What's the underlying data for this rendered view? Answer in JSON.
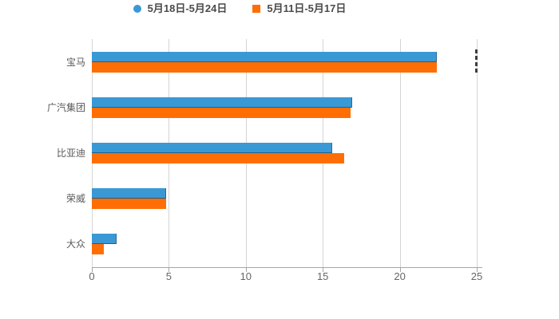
{
  "legend": {
    "items": [
      {
        "label": "5月18日-5月24日",
        "shape": "circle",
        "color": "#3A99D5"
      },
      {
        "label": "5月11日-5月17日",
        "shape": "square",
        "color": "#FF6E05"
      }
    ]
  },
  "chart_data": {
    "type": "bar",
    "orientation": "horizontal",
    "title": "",
    "xlabel": "",
    "ylabel": "",
    "categories": [
      "宝马",
      "广汽集团",
      "比亚迪",
      "荣威",
      "大众"
    ],
    "series": [
      {
        "name": "5月18日-5月24日",
        "color": "#3A99D5",
        "values": [
          22.4,
          16.9,
          15.6,
          4.8,
          1.6
        ]
      },
      {
        "name": "5月11日-5月17日",
        "color": "#FF6E05",
        "values": [
          22.4,
          16.8,
          16.4,
          4.8,
          0.8
        ]
      }
    ],
    "xlim": [
      0,
      25
    ],
    "x_ticks": [
      0,
      5,
      10,
      15,
      20,
      25
    ],
    "grid": true,
    "legend_position": "top-center"
  },
  "colors": {
    "series_blue": "#3A99D5",
    "series_orange": "#FF6E05",
    "gridline": "#D4D4D4",
    "axis_line": "#A6A6A6",
    "tick_text": "#666666",
    "category_text": "#595959",
    "legend_text": "#4A4A4A",
    "background": "#FFFFFF"
  }
}
